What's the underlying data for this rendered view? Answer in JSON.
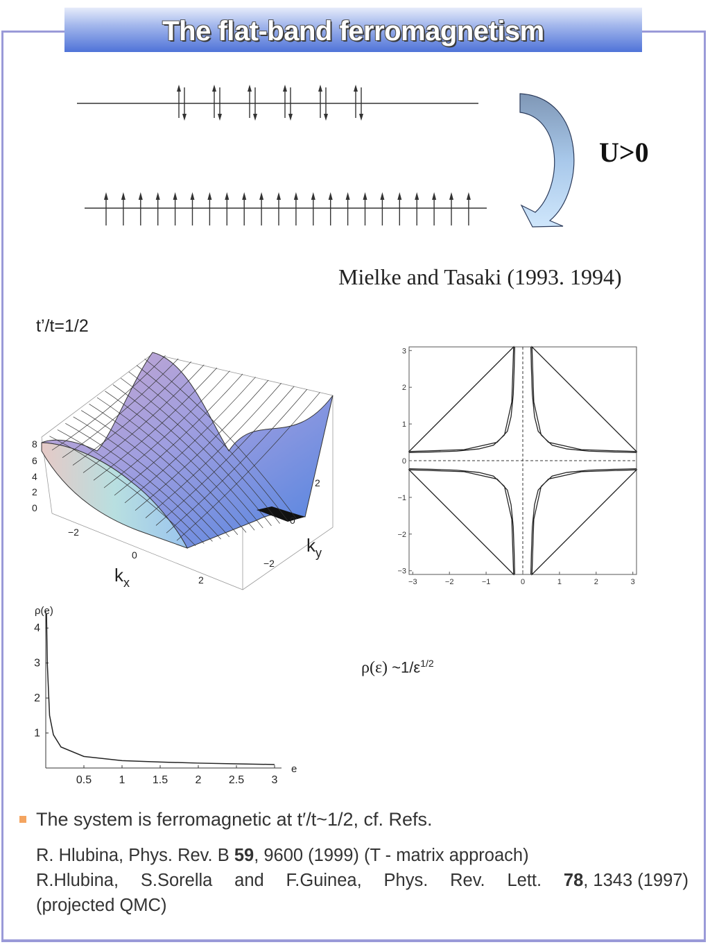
{
  "slide": {
    "title": "The flat-band ferromagnetism",
    "interaction_label": "U>0",
    "citation": "Mielke and Tasaki (1993. 1994)",
    "hopping_ratio": "t’/t=1/2",
    "dos_formula": {
      "rho": "ρ(ε)",
      "rest": "~1/ε",
      "exponent": "1/2"
    },
    "bullet": "The system is ferromagnetic at t′/t~1/2, cf. Refs.",
    "refs": {
      "line1_a": "R. Hlubina, Phys. Rev. B ",
      "line1_vol": "59",
      "line1_b": ", 9600 (1999)   (T - matrix approach)",
      "line2_parts": [
        "R.Hlubina,",
        "S.Sorella",
        "and",
        "F.Guinea,",
        "Phys.",
        "Rev.",
        "Lett."
      ],
      "line2_vol": "78",
      "line2_b": ", 1343 (1997)",
      "line3": "(projected QMC)"
    },
    "colors": {
      "frame": "#9a9ad8",
      "title_bar_dark": "#4f73d8",
      "bullet": "#f4a460",
      "arrow": "#9fc8ec"
    }
  },
  "diagram": {
    "paired_spins_count": 6,
    "aligned_spins_count": 22
  },
  "surface_plot": {
    "z_ticks": [
      "0",
      "2",
      "4",
      "6",
      "8"
    ],
    "kx_ticks": [
      "−2",
      "0",
      "2"
    ],
    "ky_ticks": [
      "−2",
      "0",
      "2"
    ],
    "xlabel": "k",
    "xlabel_sub": "x",
    "ylabel": "k",
    "ylabel_sub": "y"
  },
  "chart_data": [
    {
      "type": "line",
      "title": "",
      "xlabel": "",
      "ylabel": "",
      "xlim": [
        -3.1,
        3.1
      ],
      "ylim": [
        -3.1,
        3.1
      ],
      "x_ticks": [
        "−3",
        "−2",
        "−1",
        "0",
        "1",
        "2",
        "3"
      ],
      "y_ticks": [
        "3",
        "2",
        "1",
        "0",
        "−1",
        "−2",
        "−3"
      ],
      "grid": false,
      "dashed_axes": true,
      "curves": "fermi-surface hyperbolic branches, one in each quadrant, asymptotic to kx=0 and ky=0 (≈ ±0.22 offset)",
      "series": [
        {
          "name": "",
          "x": [
            0.25,
            0.3,
            0.5,
            0.8,
            1.2,
            1.8,
            2.5,
            3.1
          ],
          "y": [
            3.1,
            1.6,
            0.7,
            0.42,
            0.32,
            0.26,
            0.235,
            0.22
          ]
        }
      ]
    },
    {
      "type": "line",
      "title": "",
      "ylabel": "ρ(e)",
      "xlabel": "e",
      "xlim": [
        0,
        3
      ],
      "ylim": [
        0,
        4.5
      ],
      "x_ticks": [
        "0.5",
        "1",
        "1.5",
        "2",
        "2.5",
        "3"
      ],
      "y_ticks": [
        "1",
        "2",
        "3",
        "4"
      ],
      "grid": false,
      "series": [
        {
          "name": "",
          "x": [
            0.01,
            0.02,
            0.05,
            0.1,
            0.2,
            0.5,
            1,
            1.5,
            2,
            2.5,
            3
          ],
          "y": [
            4.4,
            3.0,
            1.5,
            0.95,
            0.6,
            0.33,
            0.21,
            0.17,
            0.14,
            0.12,
            0.1
          ]
        }
      ]
    }
  ]
}
